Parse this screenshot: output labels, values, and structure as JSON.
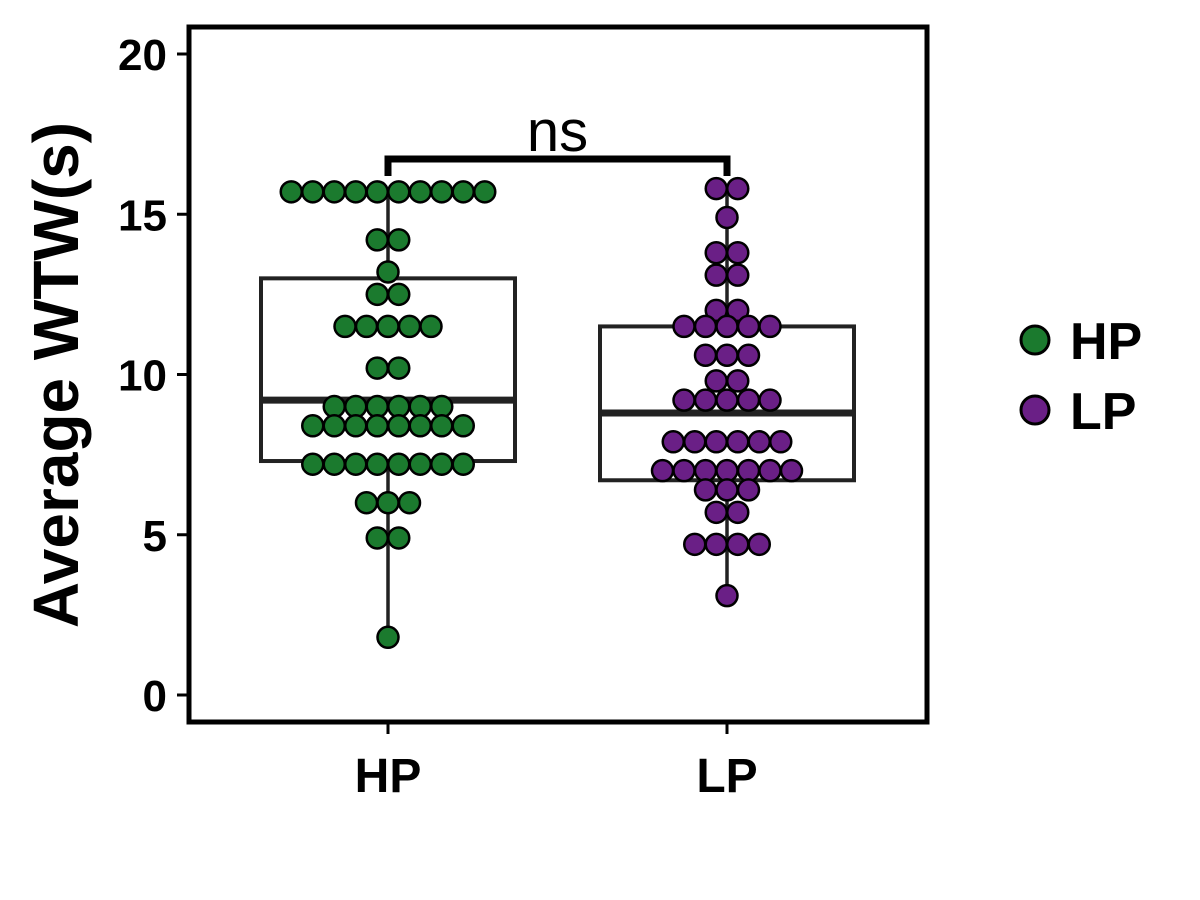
{
  "chart_data": {
    "type": "box",
    "ylabel": "Average WTW(s)",
    "xlabel": "",
    "categories": [
      "HP",
      "LP"
    ],
    "ylim": [
      0,
      20
    ],
    "yticks": [
      "0",
      "5",
      "10",
      "15",
      "20"
    ],
    "grid": false,
    "legend": {
      "position": "right",
      "entries": [
        "HP",
        "LP"
      ]
    },
    "colors": {
      "HP": "#1b7a2e",
      "LP": "#6a1f86",
      "box": "#222222"
    },
    "significance": {
      "label": "ns",
      "between": [
        "HP",
        "LP"
      ]
    },
    "series": [
      {
        "name": "HP",
        "box": {
          "q1": 7.3,
          "median": 9.2,
          "q3": 13.0,
          "whisker_low": 1.8,
          "whisker_high": 15.7
        },
        "points": [
          15.7,
          15.7,
          15.7,
          15.7,
          15.7,
          15.7,
          15.7,
          15.7,
          15.7,
          15.7,
          14.2,
          14.2,
          13.2,
          12.5,
          12.5,
          11.5,
          11.5,
          11.5,
          11.5,
          11.5,
          10.2,
          10.2,
          9.0,
          9.0,
          9.0,
          9.0,
          9.0,
          9.0,
          8.4,
          8.4,
          8.4,
          8.4,
          8.4,
          8.4,
          8.4,
          8.4,
          7.2,
          7.2,
          7.2,
          7.2,
          7.2,
          7.2,
          7.2,
          7.2,
          6.0,
          6.0,
          6.0,
          4.9,
          4.9,
          1.8
        ]
      },
      {
        "name": "LP",
        "box": {
          "q1": 6.7,
          "median": 8.8,
          "q3": 11.5,
          "whisker_low": 3.1,
          "whisker_high": 15.8
        },
        "points": [
          15.8,
          15.8,
          14.9,
          13.8,
          13.8,
          13.1,
          13.1,
          12.0,
          12.0,
          11.5,
          11.5,
          11.5,
          11.5,
          11.5,
          10.6,
          10.6,
          10.6,
          9.8,
          9.8,
          9.2,
          9.2,
          9.2,
          9.2,
          9.2,
          7.9,
          7.9,
          7.9,
          7.9,
          7.9,
          7.9,
          7.0,
          7.0,
          7.0,
          7.0,
          7.0,
          7.0,
          7.0,
          6.4,
          6.4,
          6.4,
          5.7,
          5.7,
          4.7,
          4.7,
          4.7,
          4.7,
          3.1
        ]
      }
    ]
  }
}
